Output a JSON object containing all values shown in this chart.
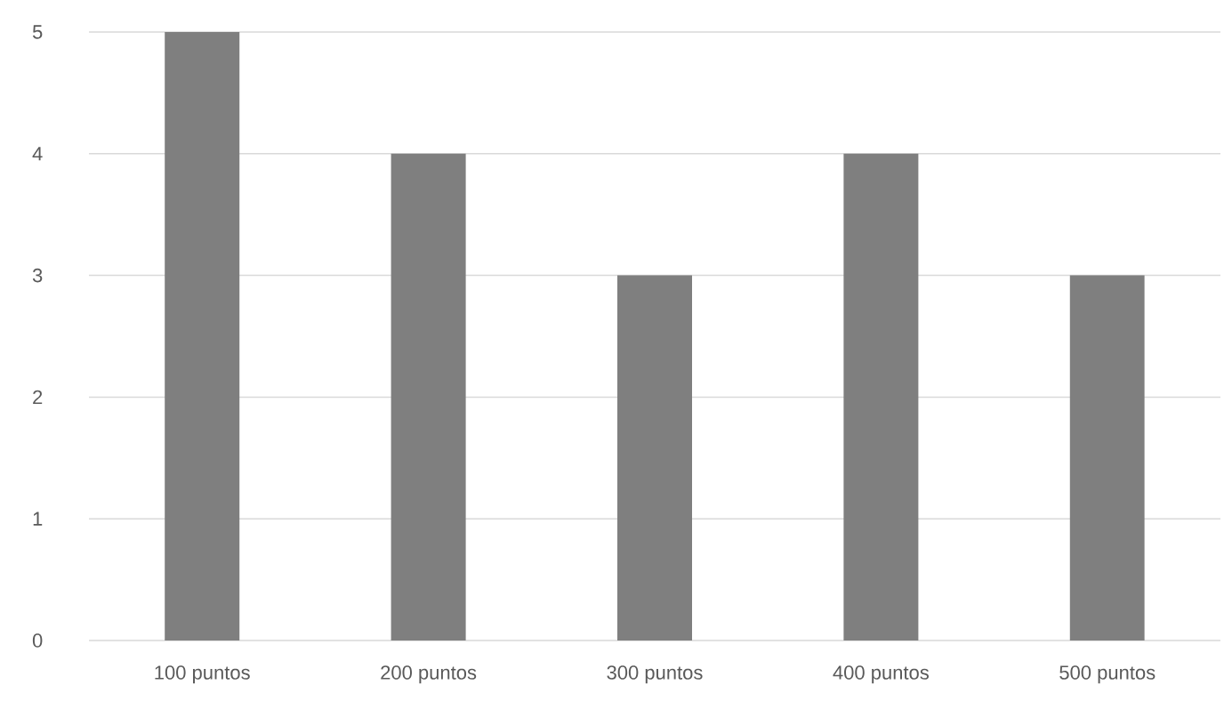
{
  "chart_data": {
    "type": "bar",
    "categories": [
      "100 puntos",
      "200 puntos",
      "300 puntos",
      "400 puntos",
      "500 puntos"
    ],
    "values": [
      5,
      4,
      3,
      4,
      3
    ],
    "color": "#7f7f7f",
    "ylim": [
      0,
      5
    ],
    "yticks": [
      0,
      1,
      2,
      3,
      4,
      5
    ],
    "grid": "y"
  }
}
